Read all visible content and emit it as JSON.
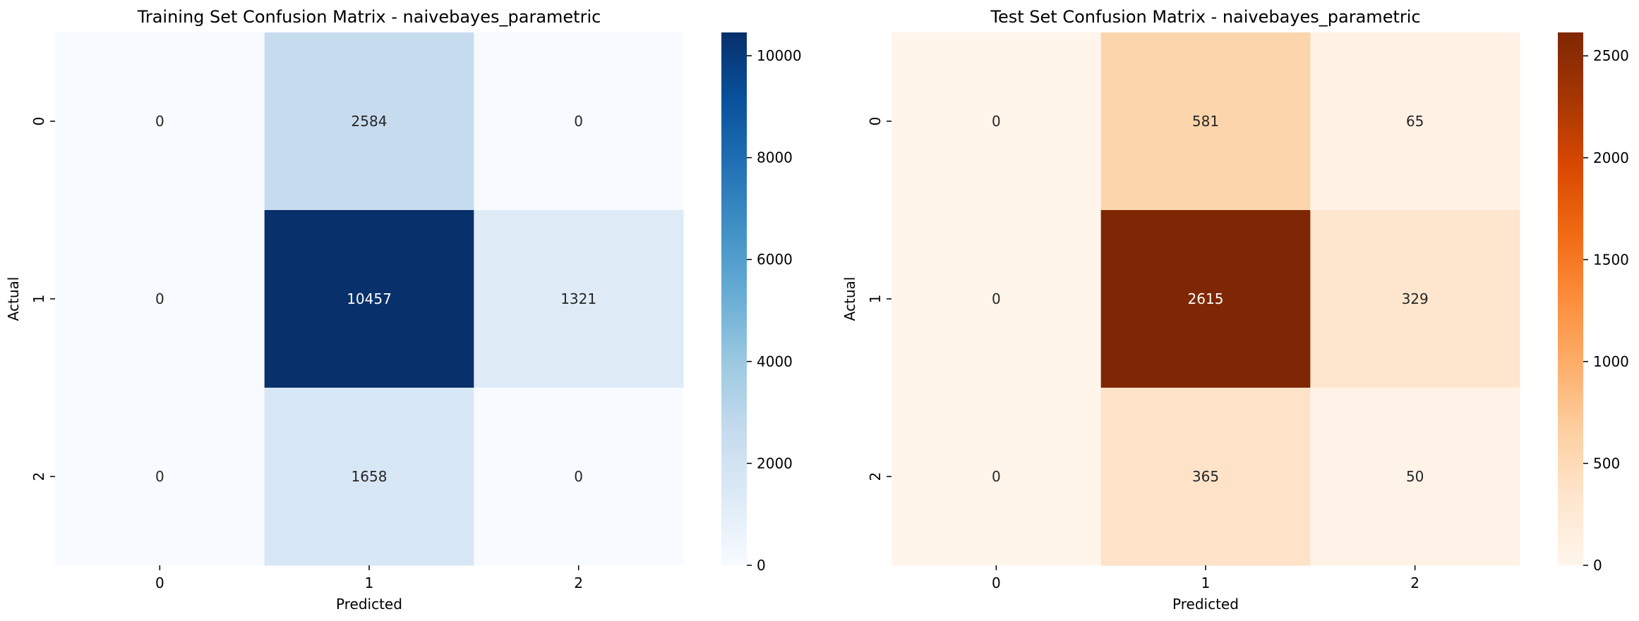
{
  "chart_data": [
    {
      "type": "heatmap",
      "title": "Training Set Confusion Matrix - naivebayes_parametric",
      "xlabel": "Predicted",
      "ylabel": "Actual",
      "x_categories": [
        "0",
        "1",
        "2"
      ],
      "y_categories": [
        "0",
        "1",
        "2"
      ],
      "values": [
        [
          0,
          2584,
          0
        ],
        [
          0,
          10457,
          1321
        ],
        [
          0,
          1658,
          0
        ]
      ],
      "colormap": "Blues",
      "color_low": "#f7fbff",
      "color_high": "#08306b",
      "colorbar": {
        "min": 0,
        "max": 10457,
        "ticks": [
          0,
          2000,
          4000,
          6000,
          8000,
          10000
        ],
        "tick_labels": [
          "0",
          "2000",
          "4000",
          "6000",
          "8000",
          "10000"
        ]
      }
    },
    {
      "type": "heatmap",
      "title": "Test Set Confusion Matrix - naivebayes_parametric",
      "xlabel": "Predicted",
      "ylabel": "Actual",
      "x_categories": [
        "0",
        "1",
        "2"
      ],
      "y_categories": [
        "0",
        "1",
        "2"
      ],
      "values": [
        [
          0,
          581,
          65
        ],
        [
          0,
          2615,
          329
        ],
        [
          0,
          365,
          50
        ]
      ],
      "colormap": "Oranges",
      "color_low": "#fff5eb",
      "color_high": "#7f2704",
      "colorbar": {
        "min": 0,
        "max": 2615,
        "ticks": [
          0,
          500,
          1000,
          1500,
          2000,
          2500
        ],
        "tick_labels": [
          "0",
          "500",
          "1000",
          "1500",
          "2000",
          "2500"
        ]
      }
    }
  ]
}
